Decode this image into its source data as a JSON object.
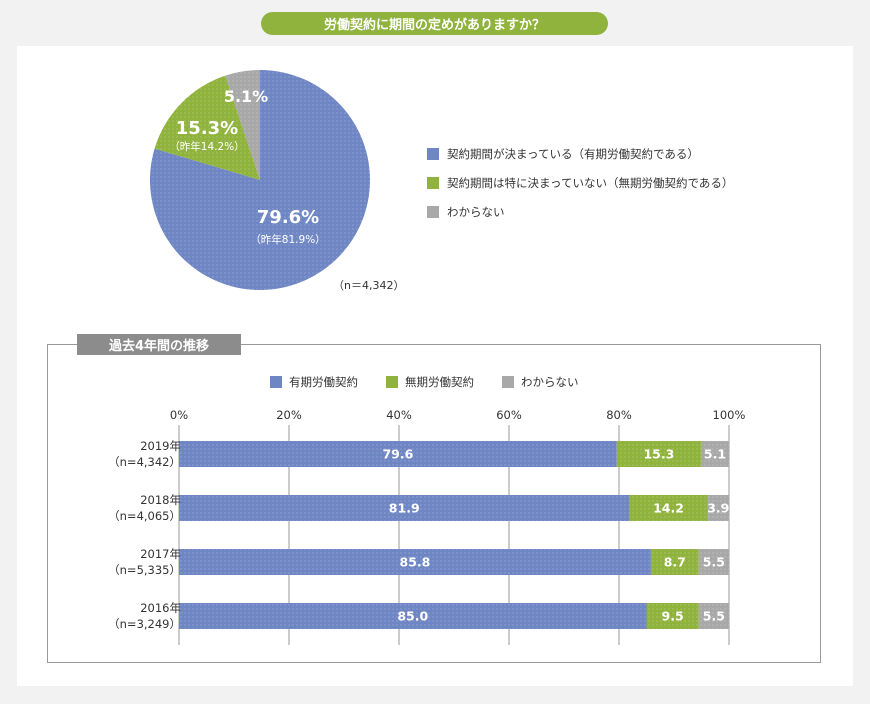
{
  "title": "労働契約に期間の定めがありますか？",
  "colors": {
    "blue": "#6f86c4",
    "green": "#8fb33c",
    "gray": "#a8a8a8",
    "title_bg": "#8fb33c",
    "trend_title_bg": "#8c8c8c"
  },
  "chart_data": [
    {
      "type": "pie",
      "slices": [
        {
          "label": "契約期間が決まっている（有期労働契約である）",
          "value": 79.6,
          "value_label": "79.6%",
          "note": "（昨年81.9%）",
          "color": "#6f86c4"
        },
        {
          "label": "契約期間は特に決まっていない（無期労働契約である）",
          "value": 15.3,
          "value_label": "15.3%",
          "note": "（昨年14.2%）",
          "color": "#8fb33c"
        },
        {
          "label": "わからない",
          "value": 5.1,
          "value_label": "5.1%",
          "note": "",
          "color": "#a8a8a8"
        }
      ],
      "n_note": "（n＝4,342）",
      "legend_position": "right"
    },
    {
      "type": "bar",
      "orientation": "horizontal",
      "stacked": true,
      "title": "過去4年間の推移",
      "categories": [
        {
          "year": "2019年",
          "n": "（n=4,342）"
        },
        {
          "year": "2018年",
          "n": "（n=4,065）"
        },
        {
          "year": "2017年",
          "n": "（n=5,335）"
        },
        {
          "year": "2016年",
          "n": "（n=3,249）"
        }
      ],
      "series": [
        {
          "name": "有期労働契約",
          "color": "#6f86c4",
          "values": [
            79.6,
            81.9,
            85.8,
            85.0
          ],
          "labels": [
            "79.6",
            "81.9",
            "85.8",
            "85.0"
          ]
        },
        {
          "name": "無期労働契約",
          "color": "#8fb33c",
          "values": [
            15.3,
            14.2,
            8.7,
            9.5
          ],
          "labels": [
            "15.3",
            "14.2",
            "8.7",
            "9.5"
          ]
        },
        {
          "name": "わからない",
          "color": "#a8a8a8",
          "values": [
            5.1,
            3.9,
            5.5,
            5.5
          ],
          "labels": [
            "5.1",
            "3.9",
            "5.5",
            "5.5"
          ]
        }
      ],
      "xlim": [
        0,
        100
      ],
      "ticks": [
        "0%",
        "20%",
        "40%",
        "60%",
        "80%",
        "100%"
      ],
      "grid": true,
      "legend_position": "top"
    }
  ]
}
